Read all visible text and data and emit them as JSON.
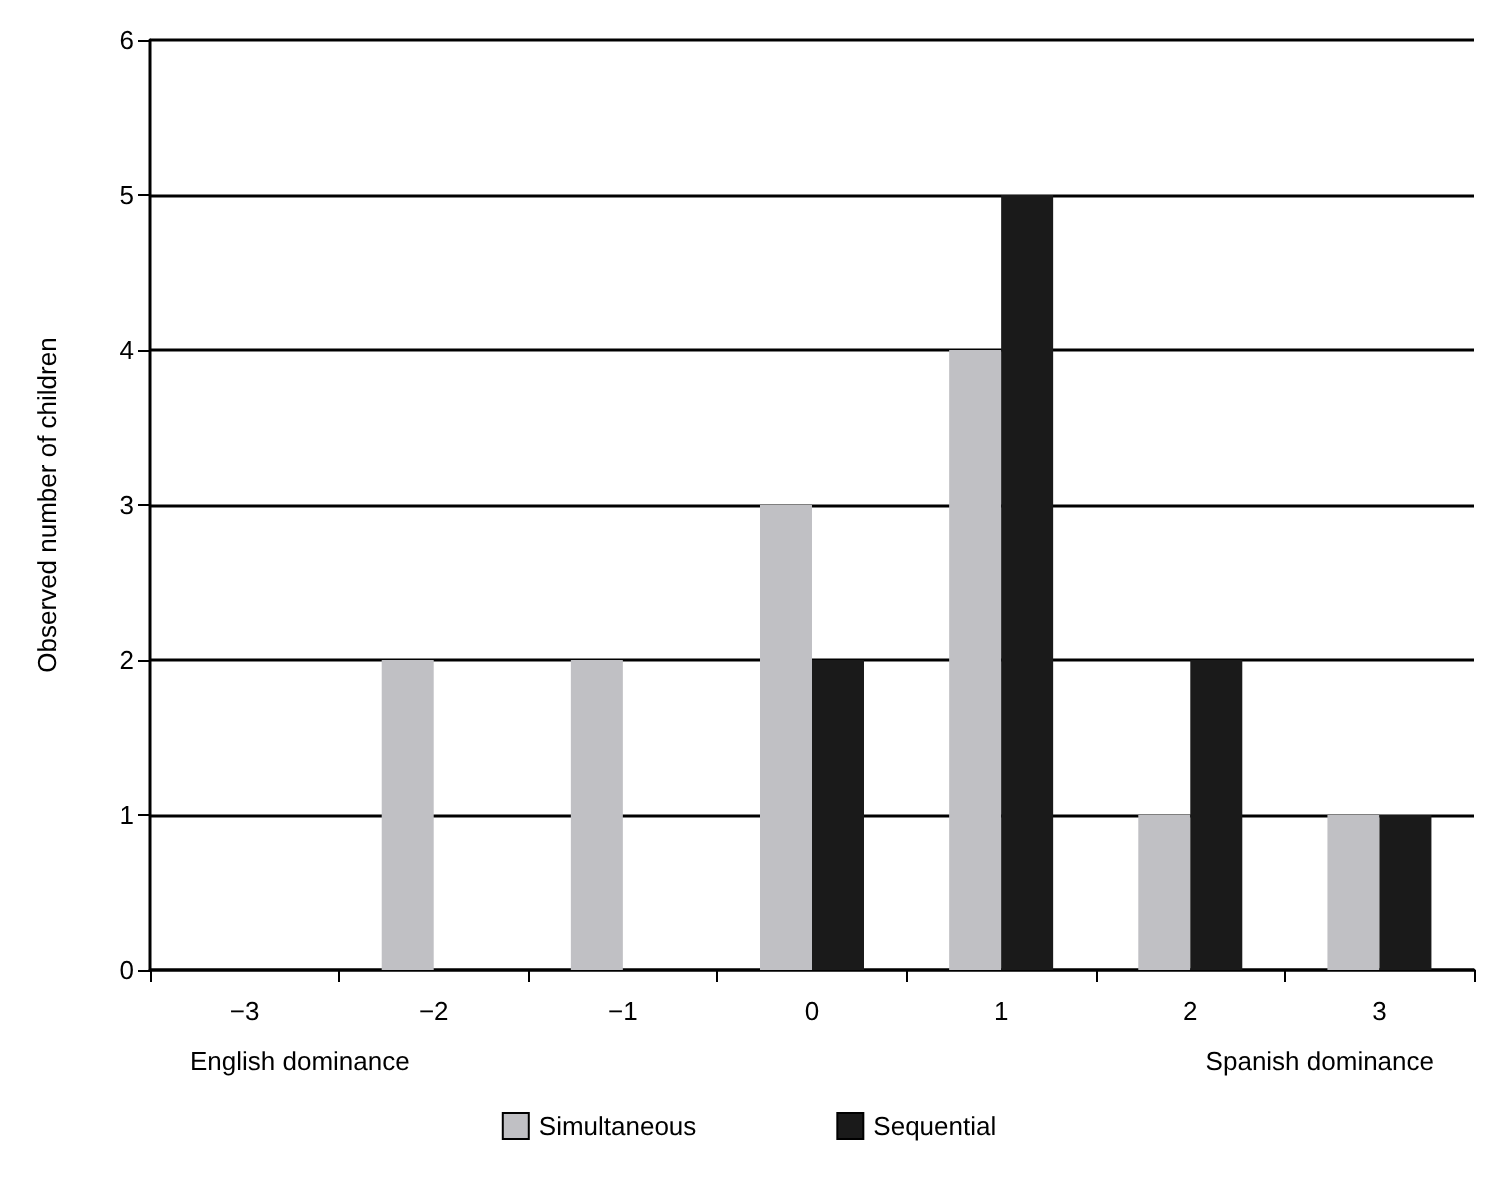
{
  "chart_data": {
    "type": "bar",
    "ylabel": "Observed number of children",
    "categories": [
      "−3",
      "−2",
      "−1",
      "0",
      "1",
      "2",
      "3"
    ],
    "series": [
      {
        "name": "Simultaneous",
        "color": "#c0c0c4",
        "values": [
          0,
          2,
          2,
          3,
          4,
          1,
          1
        ]
      },
      {
        "name": "Sequential",
        "color": "#1a1a1a",
        "values": [
          0,
          0,
          0,
          2,
          5,
          2,
          1
        ]
      }
    ],
    "ylim": [
      0,
      6
    ],
    "yticks": [
      0,
      1,
      2,
      3,
      4,
      5,
      6
    ],
    "grid": "y",
    "legend": "bottom",
    "annotations": [
      "English dominance",
      "Spanish dominance"
    ]
  }
}
